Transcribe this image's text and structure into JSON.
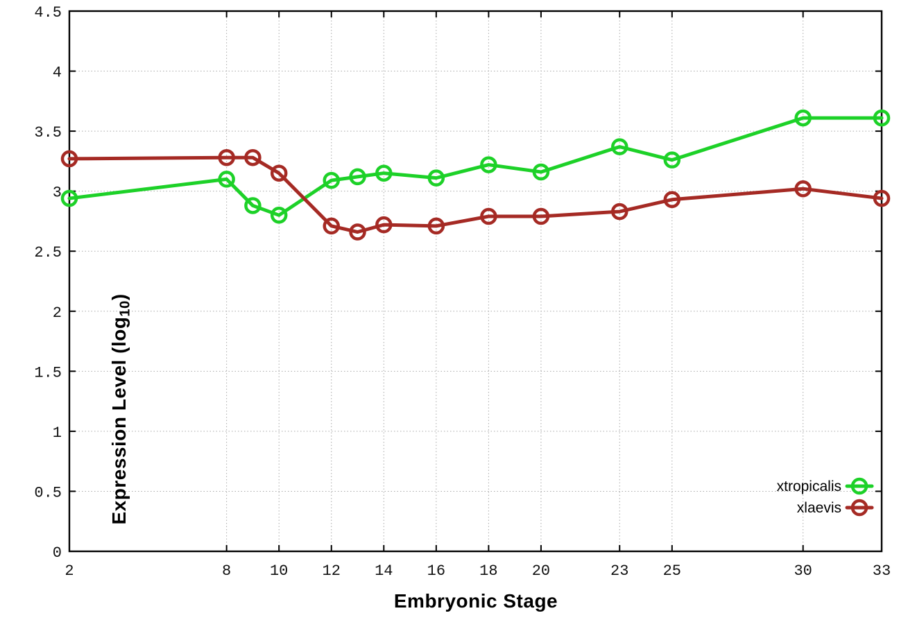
{
  "chart_data": {
    "type": "line",
    "x": [
      2,
      8,
      9,
      10,
      12,
      13,
      14,
      16,
      18,
      20,
      23,
      25,
      30,
      33
    ],
    "series": [
      {
        "name": "xtropicalis",
        "color": "#1dd128",
        "values": [
          2.94,
          3.1,
          2.88,
          2.8,
          3.09,
          3.12,
          3.15,
          3.11,
          3.22,
          3.16,
          3.37,
          3.26,
          3.61,
          3.61
        ]
      },
      {
        "name": "xlaevis",
        "color": "#a52a24",
        "values": [
          3.27,
          3.28,
          3.28,
          3.15,
          2.71,
          2.66,
          2.72,
          2.71,
          2.79,
          2.79,
          2.83,
          2.93,
          3.02,
          2.94
        ]
      }
    ],
    "xlabel": "Embryonic Stage",
    "ylabel": "Expression Level (log10)",
    "ylabel_parts": {
      "pre": "Expression Level (log",
      "sub": "10",
      "post": ")"
    },
    "xlim": [
      2,
      33
    ],
    "ylim": [
      0,
      4.5
    ],
    "xticks": [
      "2",
      "8",
      "10",
      "12",
      "14",
      "16",
      "18",
      "20",
      "23",
      "25",
      "30",
      "33"
    ],
    "xtick_values": [
      2,
      8,
      10,
      12,
      14,
      16,
      18,
      20,
      23,
      25,
      30,
      33
    ],
    "yticks": [
      "0",
      "0.5",
      "1",
      "1.5",
      "2",
      "2.5",
      "3",
      "3.5",
      "4",
      "4.5"
    ],
    "ytick_values": [
      0,
      0.5,
      1,
      1.5,
      2,
      2.5,
      3,
      3.5,
      4,
      4.5
    ],
    "grid": true,
    "legend_position": "bottom-right",
    "colors": {
      "grid": "#a8a8a8",
      "axis": "#000000",
      "background": "#ffffff"
    }
  }
}
